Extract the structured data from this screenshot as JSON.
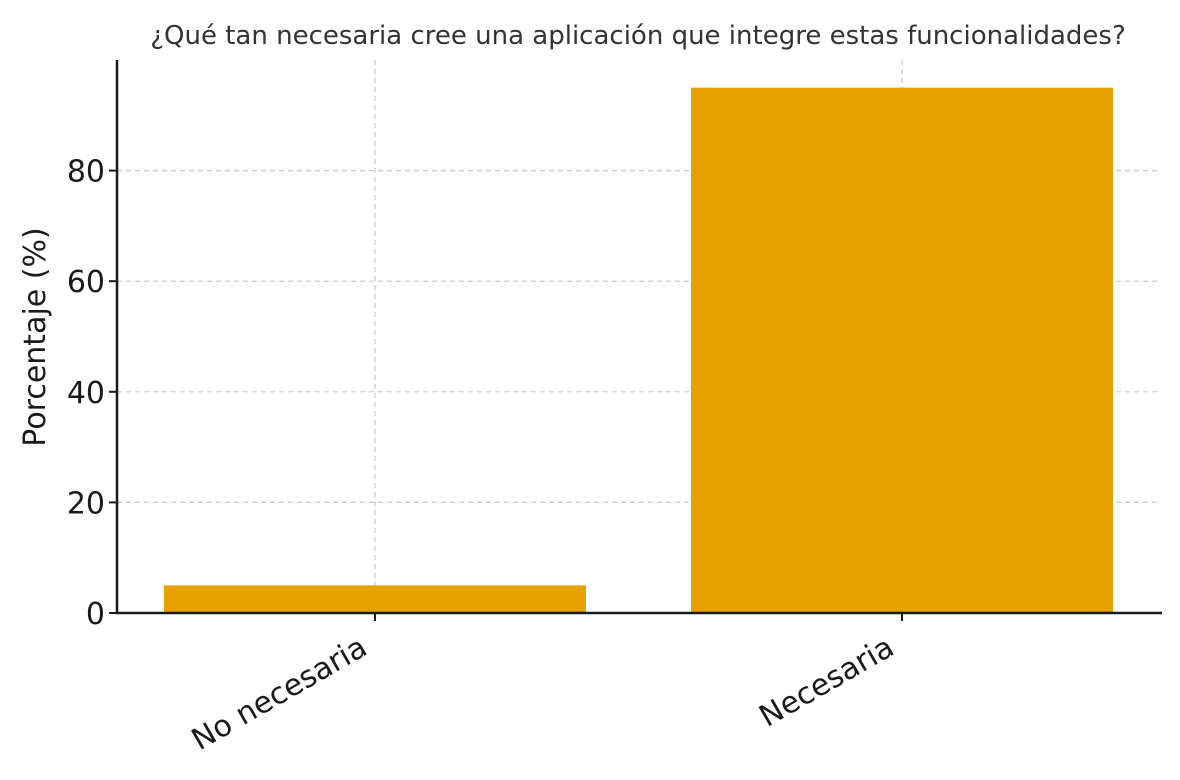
{
  "chart_data": {
    "type": "bar",
    "title": "¿Qué tan necesaria cree una aplicación que integre estas funcionalidades?",
    "xlabel": "",
    "ylabel": "Porcentaje (%)",
    "categories": [
      "No necesaria",
      "Necesaria"
    ],
    "values": [
      5,
      95
    ],
    "ylim": [
      0,
      100
    ],
    "yticks": [
      0,
      20,
      40,
      60,
      80
    ],
    "grid": true,
    "bar_color": "#E5A100"
  }
}
